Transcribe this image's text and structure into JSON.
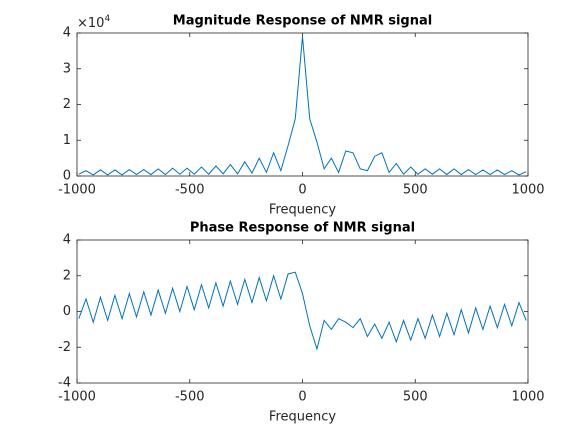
{
  "chart_data": [
    {
      "type": "line",
      "title": "Magnitude Response of NMR signal",
      "xlabel": "Frequency",
      "y_multiplier": {
        "base": "×10",
        "exponent": 4
      },
      "x": [
        -992,
        -960,
        -928,
        -896,
        -864,
        -832,
        -800,
        -768,
        -736,
        -704,
        -672,
        -640,
        -608,
        -576,
        -544,
        -512,
        -480,
        -448,
        -416,
        -384,
        -352,
        -320,
        -288,
        -256,
        -224,
        -192,
        -160,
        -128,
        -96,
        -64,
        -32,
        0,
        32,
        64,
        96,
        128,
        160,
        192,
        224,
        256,
        288,
        320,
        352,
        384,
        416,
        448,
        480,
        512,
        544,
        576,
        608,
        640,
        672,
        704,
        736,
        768,
        800,
        832,
        864,
        896,
        928,
        960,
        992
      ],
      "values": [
        0.05,
        0.15,
        0.03,
        0.17,
        0.03,
        0.17,
        0.03,
        0.18,
        0.04,
        0.18,
        0.04,
        0.2,
        0.04,
        0.22,
        0.05,
        0.22,
        0.05,
        0.25,
        0.05,
        0.28,
        0.06,
        0.32,
        0.06,
        0.4,
        0.08,
        0.5,
        0.1,
        0.65,
        0.15,
        0.85,
        1.6,
        3.9,
        1.6,
        0.95,
        0.2,
        0.5,
        0.1,
        0.7,
        0.65,
        0.2,
        0.15,
        0.55,
        0.65,
        0.1,
        0.35,
        0.05,
        0.25,
        0.05,
        0.2,
        0.05,
        0.2,
        0.04,
        0.2,
        0.04,
        0.18,
        0.04,
        0.17,
        0.04,
        0.17,
        0.04,
        0.15,
        0.03,
        0.12
      ],
      "color": "#0072bd",
      "xlim": [
        -1000,
        1000
      ],
      "xticks": [
        -1000,
        -500,
        0,
        500,
        1000
      ],
      "ylim": [
        0,
        4
      ],
      "yticks": [
        0,
        1,
        2,
        3,
        4
      ]
    },
    {
      "type": "line",
      "title": "Phase Response of NMR signal",
      "xlabel": "Frequency",
      "x": [
        -992,
        -960,
        -928,
        -896,
        -864,
        -832,
        -800,
        -768,
        -736,
        -704,
        -672,
        -640,
        -608,
        -576,
        -544,
        -512,
        -480,
        -448,
        -416,
        -384,
        -352,
        -320,
        -288,
        -256,
        -224,
        -192,
        -160,
        -128,
        -96,
        -64,
        -32,
        0,
        32,
        64,
        96,
        128,
        160,
        192,
        224,
        256,
        288,
        320,
        352,
        384,
        416,
        448,
        480,
        512,
        544,
        576,
        608,
        640,
        672,
        704,
        736,
        768,
        800,
        832,
        864,
        896,
        928,
        960,
        992
      ],
      "values": [
        -0.4,
        0.7,
        -0.6,
        0.8,
        -0.5,
        0.9,
        -0.4,
        1.0,
        -0.3,
        1.1,
        -0.2,
        1.2,
        -0.1,
        1.3,
        0.0,
        1.4,
        0.1,
        1.5,
        0.2,
        1.6,
        0.3,
        1.7,
        0.4,
        1.8,
        0.5,
        1.9,
        0.6,
        2.0,
        0.7,
        2.1,
        2.2,
        1.0,
        -0.8,
        -2.1,
        -0.5,
        -1.0,
        -0.4,
        -0.6,
        -0.9,
        -0.4,
        -1.4,
        -0.7,
        -1.5,
        -0.6,
        -1.7,
        -0.5,
        -1.6,
        -0.4,
        -1.5,
        -0.2,
        -1.4,
        -0.1,
        -1.3,
        0.1,
        -1.2,
        0.2,
        -1.0,
        0.3,
        -0.9,
        0.4,
        -0.8,
        0.5,
        -0.5
      ],
      "color": "#0072bd",
      "xlim": [
        -1000,
        1000
      ],
      "xticks": [
        -1000,
        -500,
        0,
        500,
        1000
      ],
      "ylim": [
        -4,
        4
      ],
      "yticks": [
        -4,
        -2,
        0,
        2,
        4
      ]
    }
  ]
}
